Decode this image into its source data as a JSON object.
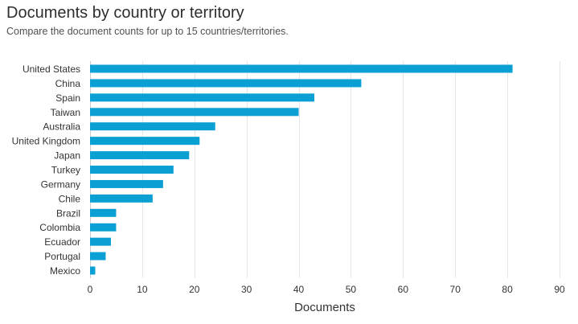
{
  "header": {
    "title": "Documents by country or territory",
    "subtitle": "Compare the document counts for up to 15 countries/territories."
  },
  "chart_data": {
    "type": "bar",
    "orientation": "horizontal",
    "title": "Documents by country or territory",
    "subtitle": "Compare the document counts for up to 15 countries/territories.",
    "xlabel": "Documents",
    "ylabel": "",
    "categories": [
      "United States",
      "China",
      "Spain",
      "Taiwan",
      "Australia",
      "United Kingdom",
      "Japan",
      "Turkey",
      "Germany",
      "Chile",
      "Brazil",
      "Colombia",
      "Ecuador",
      "Portugal",
      "Mexico"
    ],
    "values": [
      81,
      52,
      43,
      40,
      24,
      21,
      19,
      16,
      14,
      12,
      5,
      5,
      4,
      3,
      1
    ],
    "xlim": [
      0,
      90
    ],
    "xticks": [
      0,
      10,
      20,
      30,
      40,
      50,
      60,
      70,
      80,
      90
    ],
    "grid": "vertical",
    "legend": "none",
    "bar_color": "#0ba0d3",
    "grid_color": "#e6e6e6"
  }
}
